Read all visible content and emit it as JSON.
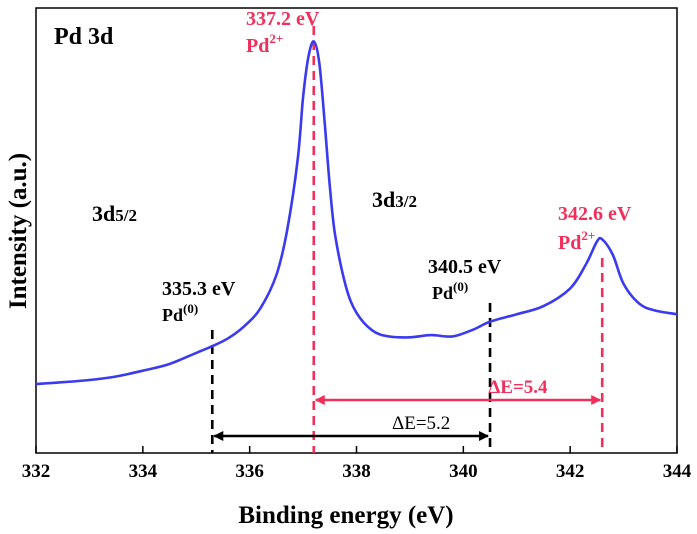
{
  "chart_data": {
    "type": "line",
    "title": "",
    "panel_label": "Pd 3d",
    "xlabel": "Binding energy (eV)",
    "ylabel": "Intensity (a.u.)",
    "xlim": [
      332,
      344
    ],
    "ylim": [
      0,
      100
    ],
    "xticks": [
      332,
      334,
      336,
      338,
      340,
      342,
      344
    ],
    "yticks_shown": false,
    "grid": false,
    "legend": "none",
    "series": [
      {
        "color": "#3a3af0",
        "x": [
          332.0,
          332.5,
          333.0,
          333.5,
          334.0,
          334.5,
          335.0,
          335.3,
          335.6,
          335.9,
          336.2,
          336.5,
          336.7,
          336.9,
          337.0,
          337.1,
          337.2,
          337.3,
          337.4,
          337.5,
          337.6,
          337.8,
          338.0,
          338.3,
          338.6,
          339.0,
          339.4,
          339.8,
          340.2,
          340.5,
          341.0,
          341.5,
          342.0,
          342.3,
          342.5,
          342.6,
          342.8,
          343.0,
          343.3,
          343.6,
          344.0
        ],
        "y": [
          15.5,
          15.9,
          16.4,
          17.2,
          18.5,
          20.0,
          22.5,
          24.0,
          25.8,
          28.5,
          32.5,
          40.0,
          50.0,
          66.0,
          80.0,
          89.0,
          92.5,
          88.0,
          75.0,
          60.0,
          49.0,
          37.5,
          31.5,
          27.5,
          26.2,
          26.0,
          26.5,
          26.2,
          27.8,
          29.5,
          31.2,
          33.0,
          37.0,
          42.5,
          47.5,
          48.0,
          44.5,
          38.0,
          33.5,
          32.0,
          31.2
        ]
      }
    ],
    "reference_lines": [
      {
        "x": 335.3,
        "color": "#000000"
      },
      {
        "x": 337.2,
        "color": "#f0305a"
      },
      {
        "x": 340.5,
        "color": "#000000"
      },
      {
        "x": 342.6,
        "color": "#f0305a"
      }
    ],
    "delta_arrows": [
      {
        "from": 335.3,
        "to": 340.5,
        "label": "ΔE=5.2",
        "color": "#000000"
      },
      {
        "from": 337.2,
        "to": 342.6,
        "label": "ΔE=5.4",
        "color": "#f0305a"
      }
    ],
    "annotations": {
      "peak_337_energy": "337.2 eV",
      "peak_337_state": "Pd",
      "peak_337_sup": "2+",
      "peak_342_energy": "342.6 eV",
      "peak_342_state": "Pd",
      "peak_342_sup": "2+",
      "peak_335_energy": "335.3 eV",
      "peak_335_state": "Pd",
      "peak_335_sup": "(0)",
      "peak_340_energy": "340.5 eV",
      "peak_340_state": "Pd",
      "peak_340_sup": "(0)",
      "region_left_main": "3d",
      "region_left_sub": "5/2",
      "region_right_main": "3d",
      "region_right_sub": "3/2"
    }
  }
}
